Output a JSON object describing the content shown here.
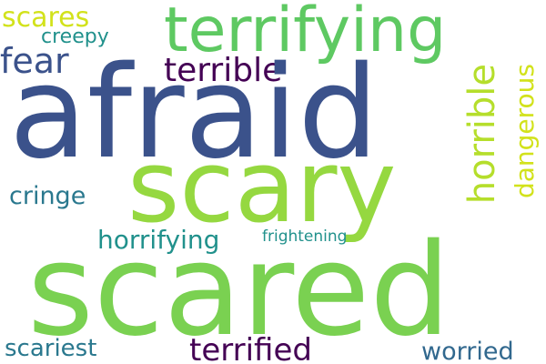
{
  "words": {
    "afraid": {
      "text": "afraid",
      "color": "#3b528b"
    },
    "scared": {
      "text": "scared",
      "color": "#7ad151"
    },
    "scary": {
      "text": "scary",
      "color": "#95d840"
    },
    "terrifying": {
      "text": "terrifying",
      "color": "#5ec962"
    },
    "terrible": {
      "text": "terrible",
      "color": "#440154"
    },
    "fear": {
      "text": "fear",
      "color": "#3b528b"
    },
    "scares": {
      "text": "scares",
      "color": "#d2e21b"
    },
    "creepy": {
      "text": "creepy",
      "color": "#21918c"
    },
    "cringe": {
      "text": "cringe",
      "color": "#2a788e"
    },
    "horrifying": {
      "text": "horrifying",
      "color": "#21918c"
    },
    "frightening": {
      "text": "frightening",
      "color": "#21918c"
    },
    "scariest": {
      "text": "scariest",
      "color": "#2a788e"
    },
    "terrified": {
      "text": "terrified",
      "color": "#440154"
    },
    "worried": {
      "text": "worried",
      "color": "#31688e"
    },
    "horrible": {
      "text": "horrible",
      "color": "#b5de2b"
    },
    "dangerous": {
      "text": "dangerous",
      "color": "#d2e21b"
    }
  }
}
